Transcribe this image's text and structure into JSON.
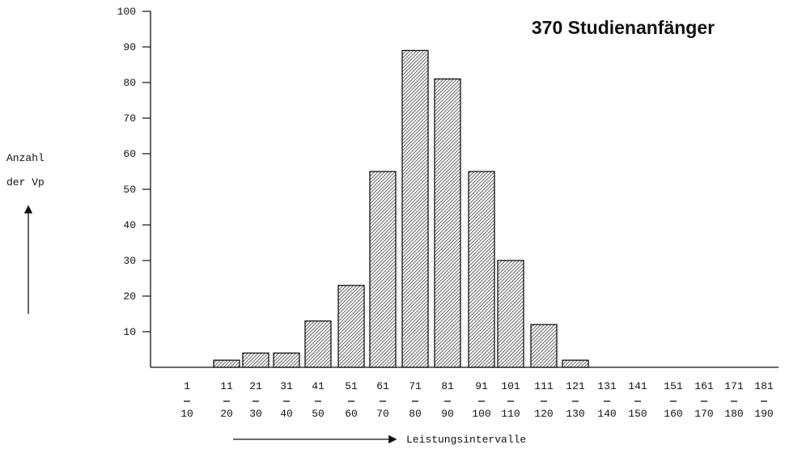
{
  "chart_data": {
    "type": "bar",
    "title": "370 Studienanfänger",
    "ylabel": [
      "Anzahl",
      "der Vp"
    ],
    "xlabel": "Leistungsintervalle",
    "ylim": [
      0,
      100
    ],
    "yticks": [
      10,
      20,
      30,
      40,
      50,
      60,
      70,
      80,
      90,
      100
    ],
    "categories": [
      {
        "low": "1",
        "high": "10"
      },
      {
        "low": "11",
        "high": "20"
      },
      {
        "low": "21",
        "high": "30"
      },
      {
        "low": "31",
        "high": "40"
      },
      {
        "low": "41",
        "high": "50"
      },
      {
        "low": "51",
        "high": "60"
      },
      {
        "low": "61",
        "high": "70"
      },
      {
        "low": "71",
        "high": "80"
      },
      {
        "low": "81",
        "high": "90"
      },
      {
        "low": "91",
        "high": "100"
      },
      {
        "low": "101",
        "high": "110"
      },
      {
        "low": "111",
        "high": "120"
      },
      {
        "low": "121",
        "high": "130"
      },
      {
        "low": "131",
        "high": "140"
      },
      {
        "low": "141",
        "high": "150"
      },
      {
        "low": "151",
        "high": "160"
      },
      {
        "low": "161",
        "high": "170"
      },
      {
        "low": "171",
        "high": "180"
      },
      {
        "low": "181",
        "high": "190"
      }
    ],
    "values": [
      0,
      2,
      4,
      4,
      13,
      23,
      55,
      89,
      81,
      55,
      30,
      12,
      2,
      0,
      0,
      0,
      0,
      0,
      0
    ],
    "grid": false,
    "bar_fill": "hatched"
  }
}
